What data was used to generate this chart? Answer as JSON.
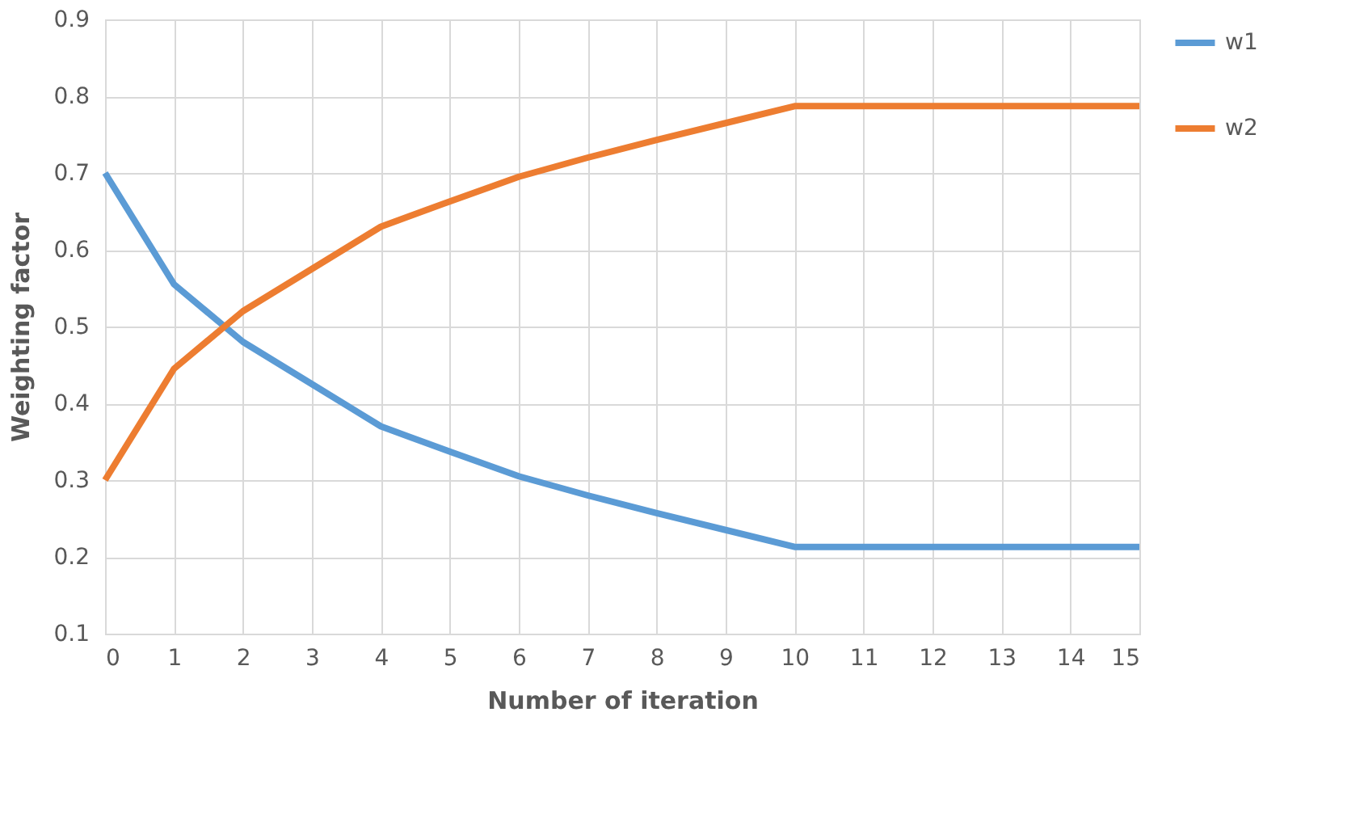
{
  "chart_data": {
    "type": "line",
    "xlabel": "Number of iteration",
    "ylabel": "Weighting factor",
    "x": [
      0,
      1,
      2,
      3,
      4,
      5,
      6,
      7,
      8,
      9,
      10,
      11,
      12,
      13,
      14,
      15
    ],
    "series": [
      {
        "name": "w1",
        "color": "#5b9bd5",
        "values": [
          0.7,
          0.555,
          0.48,
          0.425,
          0.37,
          0.337,
          0.305,
          0.28,
          0.257,
          0.235,
          0.213,
          0.213,
          0.213,
          0.213,
          0.213,
          0.213
        ]
      },
      {
        "name": "w2",
        "color": "#ed7d31",
        "values": [
          0.3,
          0.445,
          0.52,
          0.575,
          0.63,
          0.663,
          0.695,
          0.72,
          0.743,
          0.765,
          0.787,
          0.787,
          0.787,
          0.787,
          0.787,
          0.787
        ]
      }
    ],
    "xlim": [
      0,
      15
    ],
    "xticks": [
      0,
      1,
      2,
      3,
      4,
      5,
      6,
      7,
      8,
      9,
      10,
      11,
      12,
      13,
      14,
      15
    ],
    "ylim": [
      0.1,
      0.9
    ],
    "yticks": [
      0.1,
      0.2,
      0.3,
      0.4,
      0.5,
      0.6,
      0.7,
      0.8,
      0.9
    ],
    "grid": true,
    "legend": "right",
    "marker": "none",
    "line_style": "solid"
  }
}
